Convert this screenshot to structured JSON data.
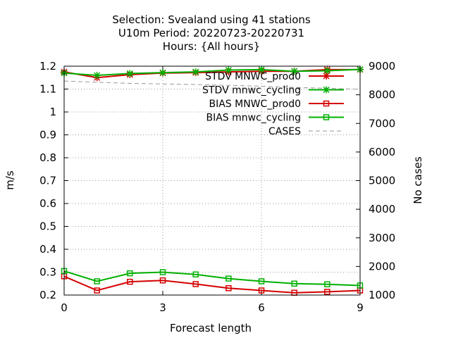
{
  "chart_data": {
    "type": "line",
    "title_lines": [
      "Selection: Svealand using    41 stations",
      "U10m   Period: 20220723-20220731",
      "Hours: {All hours}"
    ],
    "xlabel": "Forecast length",
    "ylabel": "m/s",
    "y2label": "No cases",
    "xlim": [
      0,
      9
    ],
    "ylim": [
      0.2,
      1.2
    ],
    "y2lim": [
      1000,
      9000
    ],
    "xticks": [
      "0",
      "3",
      "6",
      "9"
    ],
    "xtick_values": [
      0,
      3,
      6,
      9
    ],
    "yticks": [
      "0.2",
      "0.3",
      "0.4",
      "0.5",
      "0.6",
      "0.7",
      "0.8",
      "0.9",
      "1",
      "1.1",
      "1.2"
    ],
    "ytick_values": [
      0.2,
      0.3,
      0.4,
      0.5,
      0.6,
      0.7,
      0.8,
      0.9,
      1.0,
      1.1,
      1.2
    ],
    "y2ticks": [
      "1000",
      "2000",
      "3000",
      "4000",
      "5000",
      "6000",
      "7000",
      "8000",
      "9000"
    ],
    "y2tick_values": [
      1000,
      2000,
      3000,
      4000,
      5000,
      6000,
      7000,
      8000,
      9000
    ],
    "grid": true,
    "legend_position": "top-right",
    "x": [
      0,
      1,
      2,
      3,
      4,
      5,
      6,
      7,
      8,
      9
    ],
    "series": [
      {
        "name": "STDV MNWC_prod0",
        "axis": "y",
        "color": "#d40000",
        "marker": "star",
        "dash": false,
        "values": [
          1.175,
          1.15,
          1.163,
          1.17,
          1.172,
          1.175,
          1.178,
          1.178,
          1.185,
          1.185
        ]
      },
      {
        "name": "STDV mnwc_cycling",
        "axis": "y",
        "color": "#00b000",
        "marker": "star",
        "dash": false,
        "values": [
          1.17,
          1.16,
          1.168,
          1.172,
          1.175,
          1.183,
          1.185,
          1.178,
          1.18,
          1.186
        ]
      },
      {
        "name": "BIAS MNWC_prod0",
        "axis": "y",
        "color": "#d40000",
        "marker": "square",
        "dash": false,
        "values": [
          0.282,
          0.22,
          0.258,
          0.264,
          0.248,
          0.23,
          0.22,
          0.21,
          0.214,
          0.22
        ]
      },
      {
        "name": "BIAS mnwc_cycling",
        "axis": "y",
        "color": "#00b000",
        "marker": "square",
        "dash": false,
        "values": [
          0.305,
          0.26,
          0.295,
          0.3,
          0.29,
          0.272,
          0.26,
          0.25,
          0.247,
          0.242
        ]
      },
      {
        "name": "CASES",
        "axis": "y2",
        "color": "#999999",
        "marker": "none",
        "dash": true,
        "values": [
          8480,
          8440,
          8400,
          8380,
          8360,
          8330,
          8300,
          8260,
          8230,
          8190
        ]
      }
    ]
  }
}
